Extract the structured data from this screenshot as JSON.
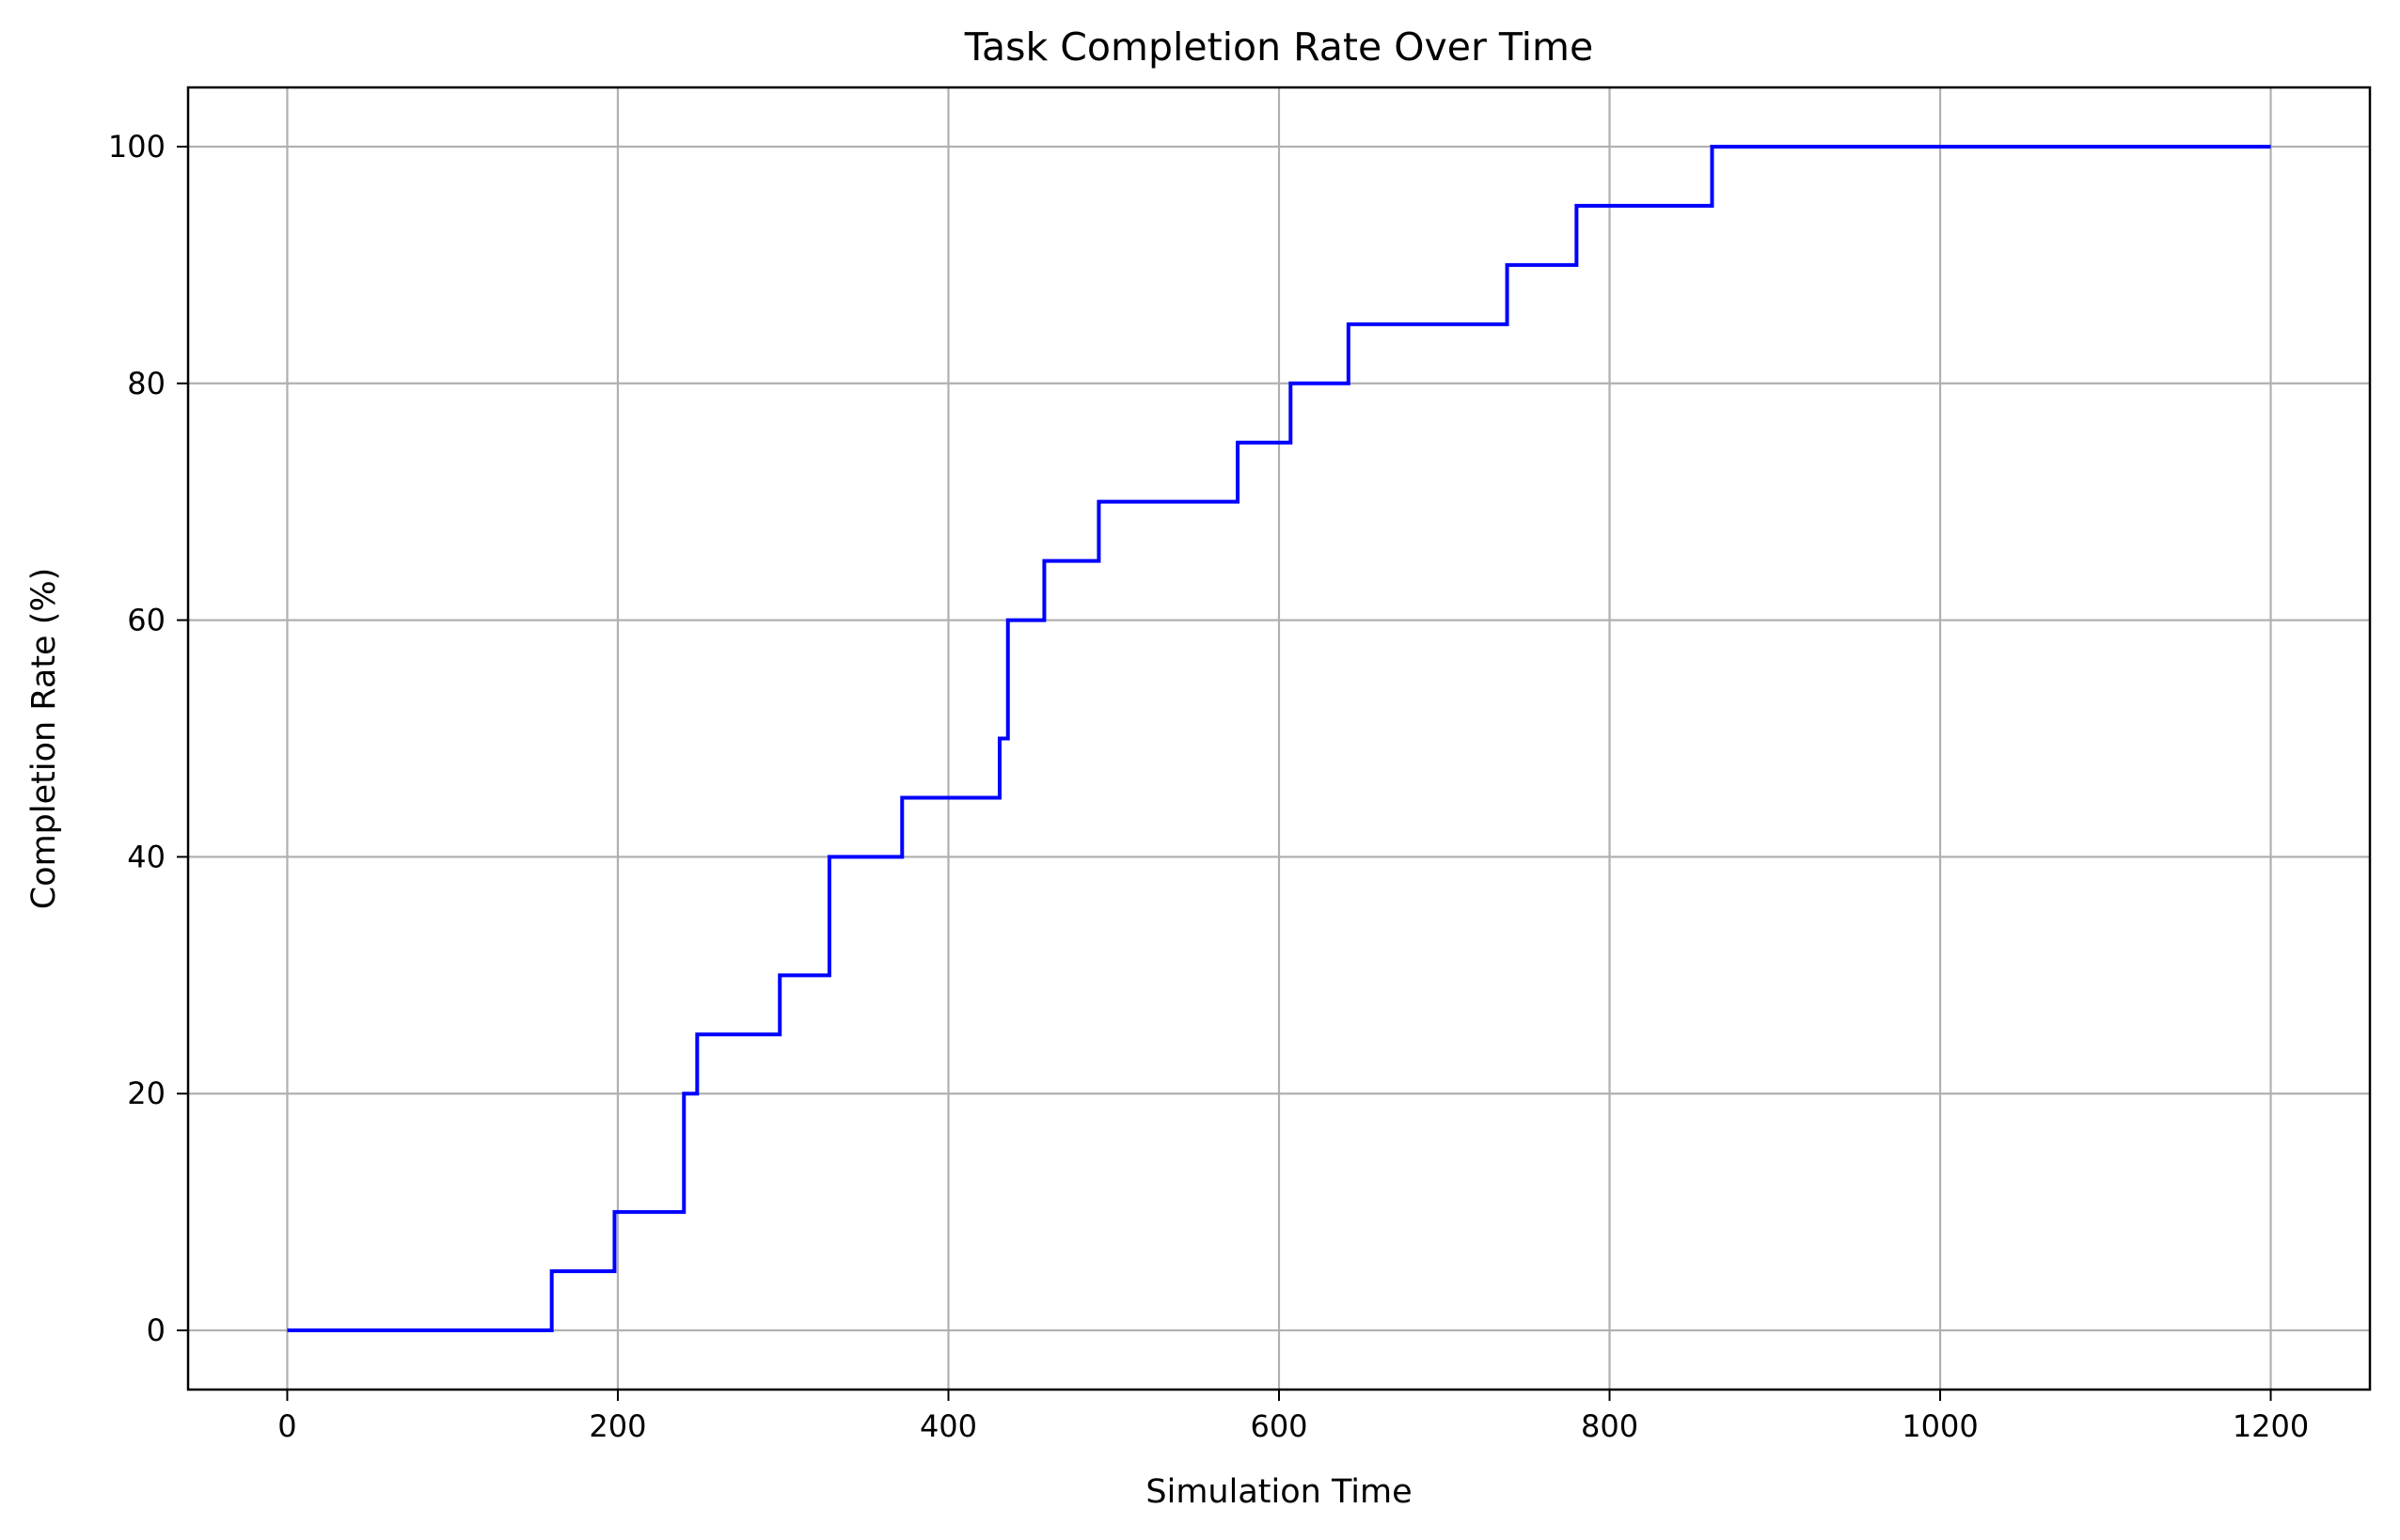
{
  "chart_data": {
    "type": "line",
    "step": "post",
    "title": "Task Completion Rate Over Time",
    "xlabel": "Simulation Time",
    "ylabel": "Completion Rate (%)",
    "xlim": [
      -60,
      1260
    ],
    "ylim": [
      -5,
      105
    ],
    "xticks": [
      0,
      200,
      400,
      600,
      800,
      1000,
      1200
    ],
    "yticks": [
      0,
      20,
      40,
      60,
      80,
      100
    ],
    "grid": true,
    "series": [
      {
        "color": "#0000ff",
        "x": [
          0,
          160,
          198,
          240,
          248,
          298,
          328,
          372,
          431,
          436,
          441,
          458,
          491,
          575,
          607,
          642,
          738,
          780,
          862,
          1200
        ],
        "values": [
          0,
          5,
          10,
          20,
          25,
          30,
          40,
          45,
          50,
          60,
          60,
          65,
          70,
          75,
          80,
          85,
          90,
          95,
          100,
          100
        ]
      }
    ]
  }
}
